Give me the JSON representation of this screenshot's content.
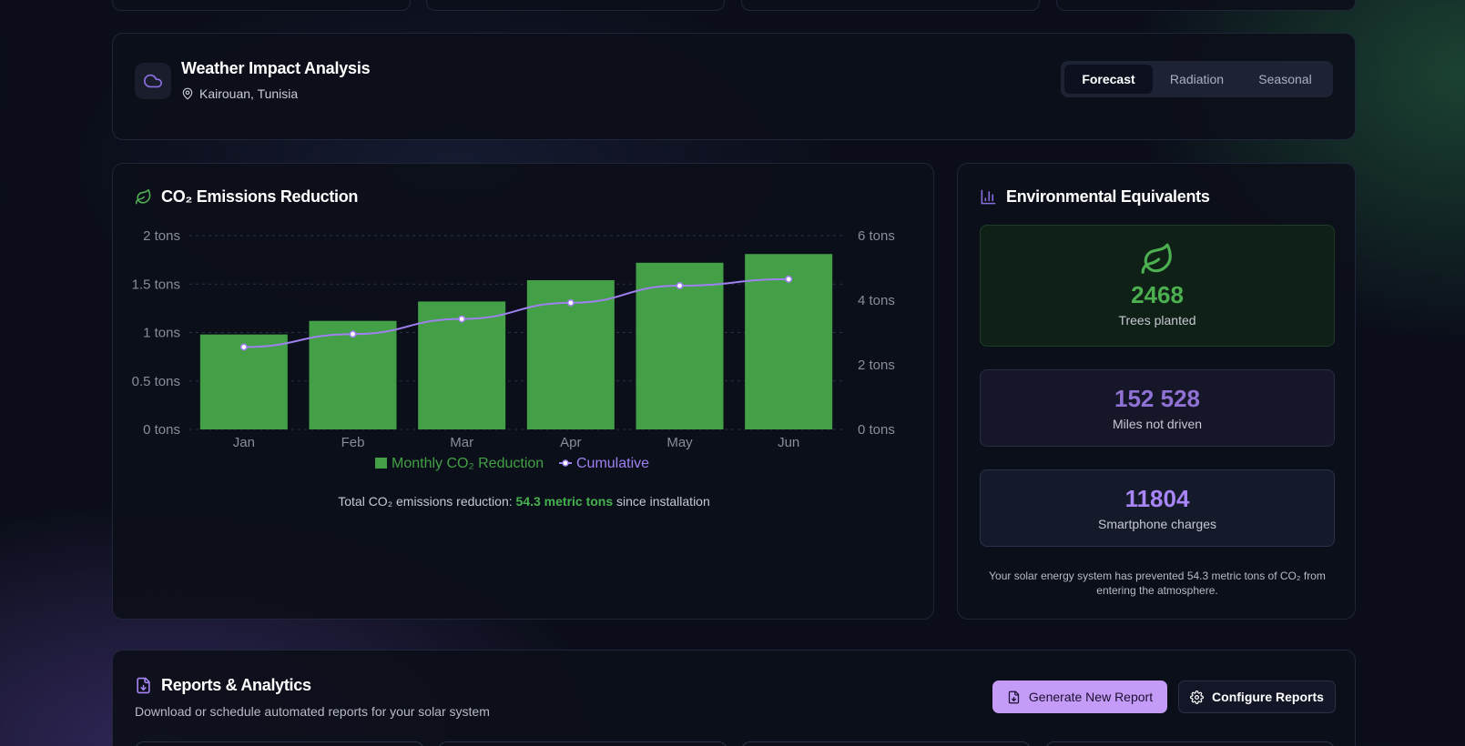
{
  "weather": {
    "title": "Weather Impact Analysis",
    "location": "Kairouan, Tunisia",
    "tabs": [
      {
        "label": "Forecast",
        "active": true
      },
      {
        "label": "Radiation",
        "active": false
      },
      {
        "label": "Seasonal",
        "active": false
      }
    ]
  },
  "co2": {
    "title": "CO₂ Emissions Reduction",
    "total_prefix": "Total CO₂ emissions reduction: ",
    "total_value": "54.3 metric tons",
    "total_suffix": " since installation"
  },
  "chart_data": {
    "type": "bar",
    "categories": [
      "Jan",
      "Feb",
      "Mar",
      "Apr",
      "May",
      "Jun"
    ],
    "series": [
      {
        "name": "Monthly CO₂ Reduction",
        "type": "bar",
        "axis": "left",
        "color": "#43a047",
        "values": [
          0.98,
          1.12,
          1.32,
          1.54,
          1.72,
          1.81
        ]
      },
      {
        "name": "Cumulative",
        "type": "line",
        "axis": "right",
        "color": "#9f80f0",
        "values": [
          2.55,
          2.95,
          3.42,
          3.92,
          4.45,
          4.65
        ]
      }
    ],
    "left_axis": {
      "ylim": [
        0,
        2
      ],
      "ticks": [
        "0 tons",
        "0.5 tons",
        "1 tons",
        "1.5 tons",
        "2 tons"
      ]
    },
    "right_axis": {
      "ylim": [
        0,
        6
      ],
      "ticks": [
        "0 tons",
        "2 tons",
        "4 tons",
        "6 tons"
      ]
    },
    "grid": true,
    "legend": "bottom-center"
  },
  "environment": {
    "title": "Environmental Equivalents",
    "items": [
      {
        "value": "2468",
        "label": "Trees planted",
        "color": "#4caf50"
      },
      {
        "value": "152 528",
        "label": "Miles not driven",
        "color": "#8f72d4"
      },
      {
        "value": "11804",
        "label": "Smartphone charges",
        "color": "#a886f7"
      }
    ],
    "note": "Your solar energy system has prevented 54.3 metric tons of CO₂ from entering the atmosphere."
  },
  "reports": {
    "title": "Reports & Analytics",
    "subtitle": "Download or schedule automated reports for your solar system",
    "generate_label": "Generate New Report",
    "configure_label": "Configure Reports"
  },
  "icons": {
    "weather": "cloud-icon",
    "location": "map-pin-icon",
    "co2": "leaf-icon",
    "env": "bar-chart-icon",
    "trees": "leaf-icon",
    "reports": "file-download-icon",
    "generate": "file-download-icon",
    "configure": "gear-icon"
  }
}
